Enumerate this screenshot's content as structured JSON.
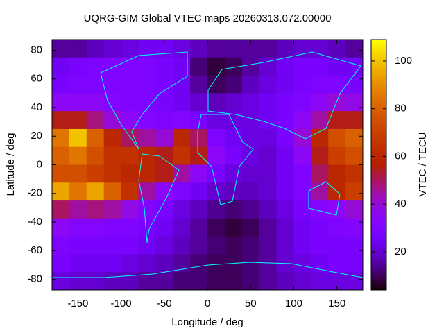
{
  "chart_data": {
    "type": "heatmap",
    "title": "UQRG-GIM Global VTEC maps 20260313.072.00000",
    "x_label": "Longitude / deg",
    "y_label": "Latitude / deg",
    "colorbar_label": "VTEC / TECU",
    "x": [
      -170,
      -150,
      -130,
      -110,
      -90,
      -70,
      -50,
      -30,
      -10,
      10,
      30,
      50,
      70,
      90,
      110,
      130,
      150,
      170
    ],
    "y": [
      81.25,
      68.75,
      56.25,
      43.75,
      31.25,
      18.75,
      6.25,
      -6.25,
      -18.75,
      -31.25,
      -43.75,
      -56.25,
      -68.75,
      -81.25
    ],
    "values": [
      [
        15,
        15,
        18,
        20,
        22,
        25,
        25,
        22,
        18,
        15,
        15,
        15,
        15,
        18,
        20,
        20,
        18,
        15
      ],
      [
        25,
        28,
        30,
        30,
        30,
        30,
        28,
        25,
        12,
        8,
        10,
        15,
        20,
        25,
        28,
        28,
        25,
        25
      ],
      [
        28,
        30,
        30,
        30,
        30,
        30,
        28,
        25,
        15,
        10,
        12,
        18,
        22,
        25,
        28,
        30,
        30,
        28
      ],
      [
        35,
        35,
        35,
        32,
        30,
        30,
        28,
        25,
        20,
        18,
        20,
        22,
        25,
        28,
        30,
        35,
        40,
        38
      ],
      [
        55,
        55,
        48,
        40,
        35,
        32,
        30,
        32,
        28,
        22,
        22,
        22,
        25,
        28,
        35,
        45,
        55,
        55
      ],
      [
        85,
        100,
        80,
        60,
        50,
        45,
        40,
        60,
        50,
        30,
        25,
        22,
        22,
        28,
        40,
        60,
        75,
        80
      ],
      [
        80,
        85,
        75,
        65,
        65,
        60,
        55,
        65,
        55,
        35,
        28,
        22,
        20,
        25,
        35,
        55,
        70,
        75
      ],
      [
        75,
        75,
        70,
        65,
        60,
        60,
        55,
        45,
        35,
        28,
        22,
        20,
        20,
        25,
        30,
        50,
        60,
        65
      ],
      [
        95,
        85,
        95,
        80,
        65,
        45,
        35,
        30,
        25,
        20,
        18,
        18,
        20,
        25,
        30,
        45,
        60,
        70
      ],
      [
        50,
        45,
        48,
        45,
        38,
        32,
        28,
        22,
        18,
        14,
        12,
        14,
        18,
        22,
        28,
        32,
        35,
        40
      ],
      [
        35,
        32,
        32,
        30,
        30,
        28,
        25,
        20,
        15,
        10,
        8,
        10,
        15,
        20,
        25,
        28,
        30,
        32
      ],
      [
        30,
        28,
        28,
        28,
        28,
        25,
        22,
        18,
        15,
        12,
        10,
        12,
        15,
        20,
        25,
        28,
        28,
        28
      ],
      [
        28,
        25,
        25,
        25,
        22,
        20,
        18,
        15,
        12,
        10,
        10,
        12,
        15,
        20,
        22,
        25,
        28,
        28
      ],
      [
        22,
        20,
        20,
        18,
        18,
        15,
        15,
        12,
        12,
        10,
        10,
        12,
        15,
        18,
        20,
        22,
        22,
        22
      ]
    ],
    "xlim": [
      -180,
      180
    ],
    "ylim": [
      -87.5,
      87.5
    ],
    "xticks": [
      -150,
      -100,
      -50,
      0,
      50,
      100,
      150
    ],
    "yticks": [
      -80,
      -60,
      -40,
      -20,
      0,
      20,
      40,
      60,
      80
    ],
    "zlim": [
      4,
      109
    ],
    "zticks": [
      20,
      40,
      60,
      80,
      100
    ]
  }
}
